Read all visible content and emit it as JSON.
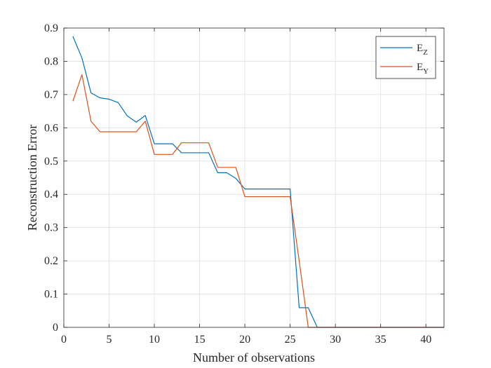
{
  "chart_data": {
    "type": "line",
    "title": "",
    "xlabel": "Number of observations",
    "ylabel": "Reconstruction Error",
    "xlim": [
      0,
      42
    ],
    "ylim": [
      0,
      0.9
    ],
    "xticks": [
      0,
      5,
      10,
      15,
      20,
      25,
      30,
      35,
      40
    ],
    "yticks": [
      0,
      0.1,
      0.2,
      0.3,
      0.4,
      0.5,
      0.6,
      0.7,
      0.8,
      0.9
    ],
    "x_tick_labels": [
      "0",
      "5",
      "10",
      "15",
      "20",
      "25",
      "30",
      "35",
      "40"
    ],
    "y_tick_labels": [
      "0",
      "0.1",
      "0.2",
      "0.3",
      "0.4",
      "0.5",
      "0.6",
      "0.7",
      "0.8",
      "0.9"
    ],
    "grid": true,
    "legend_position": "top-right",
    "x": [
      1,
      2,
      3,
      4,
      5,
      6,
      7,
      8,
      9,
      10,
      11,
      12,
      13,
      14,
      15,
      16,
      17,
      18,
      19,
      20,
      21,
      22,
      23,
      24,
      25,
      26,
      27,
      28,
      29,
      30,
      31,
      32,
      33,
      34,
      35,
      36,
      37,
      38,
      39,
      40,
      41,
      42
    ],
    "series": [
      {
        "name": "E",
        "name_sub": "Z",
        "color": "#0072BD",
        "values": [
          0.875,
          0.81,
          0.705,
          0.69,
          0.686,
          0.676,
          0.636,
          0.617,
          0.637,
          0.552,
          0.552,
          0.552,
          0.525,
          0.525,
          0.525,
          0.525,
          0.465,
          0.465,
          0.448,
          0.416,
          0.416,
          0.416,
          0.416,
          0.416,
          0.416,
          0.059,
          0.059,
          0.0,
          0.0,
          0.0,
          0.0,
          0.0,
          0.0,
          0.0,
          0.0,
          0.0,
          0.0,
          0.0,
          0.0,
          0.0,
          0.0,
          0.0
        ]
      },
      {
        "name": "E",
        "name_sub": "Y",
        "color": "#D95319",
        "values": [
          0.68,
          0.76,
          0.62,
          0.588,
          0.588,
          0.588,
          0.588,
          0.588,
          0.62,
          0.52,
          0.52,
          0.52,
          0.555,
          0.555,
          0.555,
          0.555,
          0.481,
          0.481,
          0.481,
          0.393,
          0.393,
          0.393,
          0.393,
          0.393,
          0.393,
          0.2,
          0.0,
          0.0,
          0.0,
          0.0,
          0.0,
          0.0,
          0.0,
          0.0,
          0.0,
          0.0,
          0.0,
          0.0,
          0.0,
          0.0,
          0.0,
          0.0
        ]
      }
    ]
  }
}
